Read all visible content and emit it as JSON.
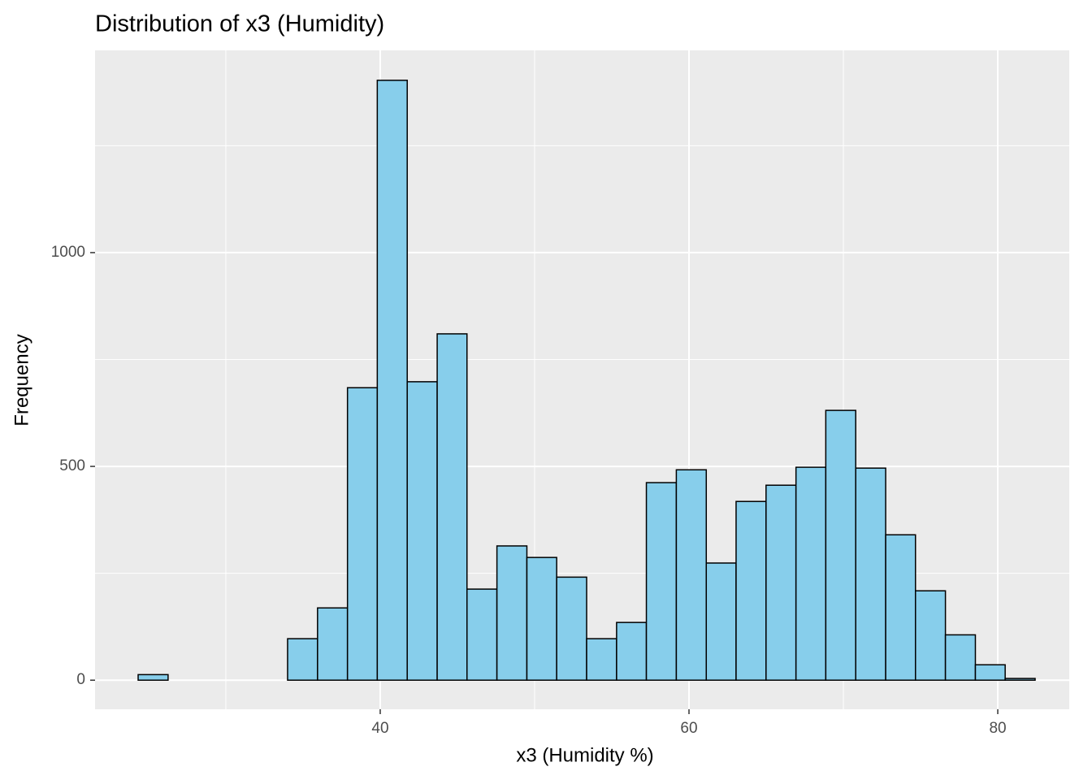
{
  "chart_data": {
    "type": "histogram",
    "title": "Distribution of x3 (Humidity)",
    "x_label": "x3 (Humidity %)",
    "y_label": "Frequency",
    "bins": [
      24.32,
      26.26,
      28.19,
      30.13,
      32.07,
      34.0,
      35.94,
      37.88,
      39.81,
      41.75,
      43.69,
      45.62,
      47.56,
      49.5,
      51.43,
      53.37,
      55.31,
      57.24,
      59.18,
      61.12,
      63.05,
      64.99,
      66.93,
      68.86,
      70.8,
      72.74,
      74.67,
      76.61,
      78.55,
      80.48,
      82.42
    ],
    "values": [
      13,
      0,
      0,
      0,
      0,
      97,
      169,
      684,
      1403,
      698,
      810,
      213,
      314,
      287,
      241,
      97,
      135,
      462,
      492,
      274,
      418,
      456,
      498,
      631,
      496,
      340,
      209,
      106,
      36,
      4
    ],
    "color": "#87ceeb",
    "edgecolor": "#000000",
    "xlim": [
      21.53,
      84.63
    ],
    "ylim": [
      -68,
      1473
    ],
    "xticks": [
      40,
      60,
      80
    ],
    "yticks": [
      0,
      500,
      1000
    ],
    "xminor": [
      30,
      50,
      70
    ],
    "yminor": [
      250,
      750,
      1250
    ],
    "grid": true
  }
}
